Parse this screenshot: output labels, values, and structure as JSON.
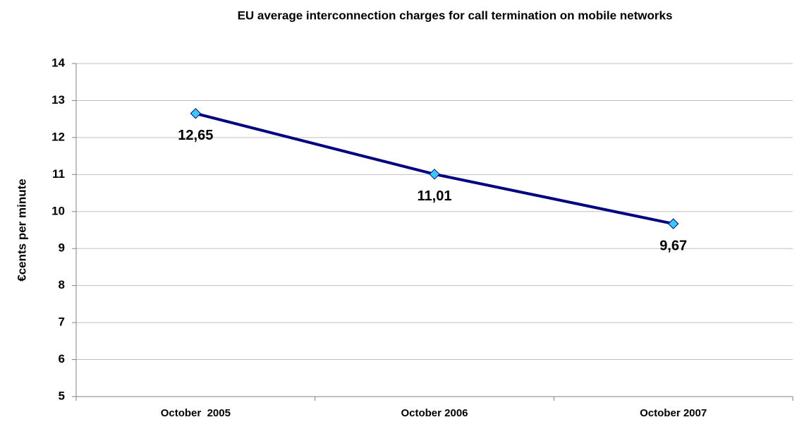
{
  "chart_data": {
    "type": "line",
    "title": "EU average interconnection charges for call termination on mobile networks",
    "y_label": "€cents per minute",
    "categories": [
      "October  2005",
      "October 2006",
      "October 2007"
    ],
    "series": [
      {
        "name": "EU average",
        "color": "#000080",
        "marker_color": "#33ccff",
        "values": [
          12.65,
          11.01,
          9.67
        ],
        "value_labels": [
          "12,65",
          "11,01",
          "9,67"
        ]
      }
    ],
    "ylim": [
      5,
      14
    ],
    "yticks": [
      5,
      6,
      7,
      8,
      9,
      10,
      11,
      12,
      13,
      14
    ],
    "grid": true,
    "legend": false
  }
}
